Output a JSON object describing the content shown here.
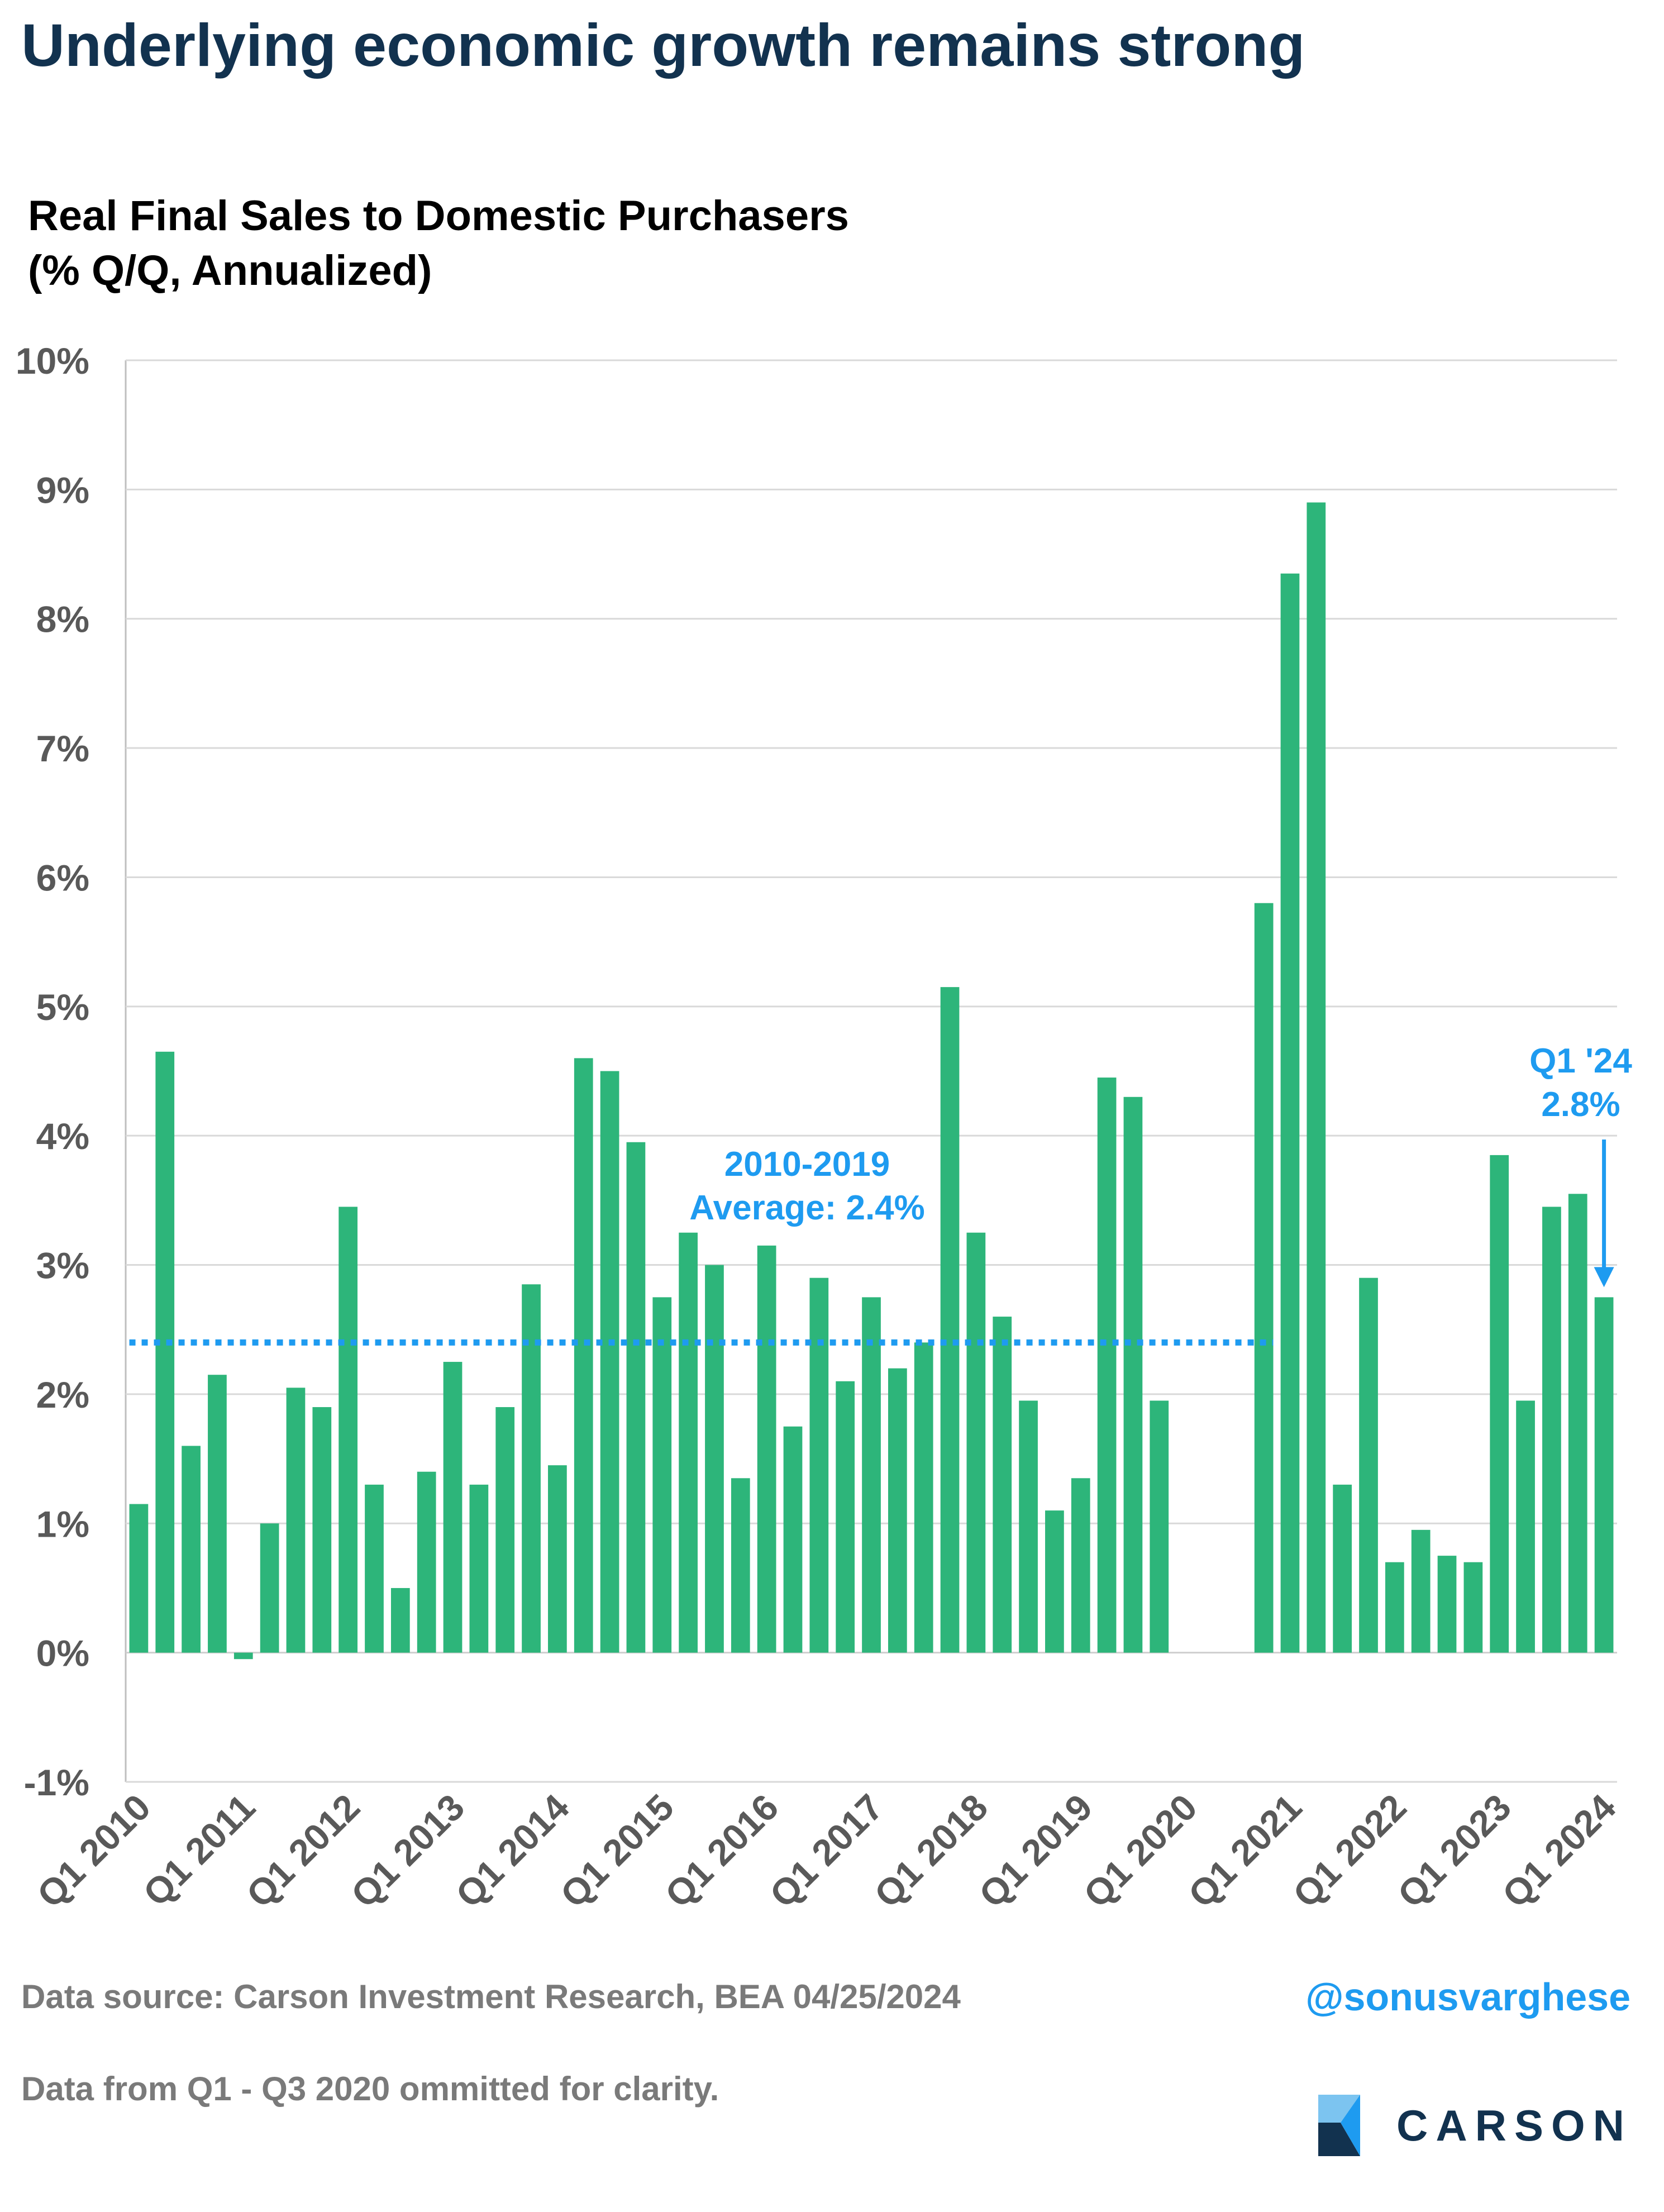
{
  "headline": "Underlying economic growth remains strong",
  "chart_data": {
    "type": "bar",
    "title": "Real Final Sales to Domestic Purchasers",
    "subtitle": "(% Q/Q, Annualized)",
    "xlabel": "",
    "ylabel": "",
    "ylim": [
      -1,
      10
    ],
    "y_ticks": [
      "-1%",
      "0%",
      "1%",
      "2%",
      "3%",
      "4%",
      "5%",
      "6%",
      "7%",
      "8%",
      "9%",
      "10%"
    ],
    "x_tick_labels": [
      "Q1 2010",
      "Q1 2011",
      "Q1 2012",
      "Q1 2013",
      "Q1 2014",
      "Q1 2015",
      "Q1 2016",
      "Q1 2017",
      "Q1 2018",
      "Q1 2019",
      "Q1 2020",
      "Q1 2021",
      "Q1 2022",
      "Q1 2023",
      "Q1 2024"
    ],
    "grid": true,
    "bar_color": "#2db57a",
    "categories": [
      "Q1 2010",
      "Q2 2010",
      "Q3 2010",
      "Q4 2010",
      "Q1 2011",
      "Q2 2011",
      "Q3 2011",
      "Q4 2011",
      "Q1 2012",
      "Q2 2012",
      "Q3 2012",
      "Q4 2012",
      "Q1 2013",
      "Q2 2013",
      "Q3 2013",
      "Q4 2013",
      "Q1 2014",
      "Q2 2014",
      "Q3 2014",
      "Q4 2014",
      "Q1 2015",
      "Q2 2015",
      "Q3 2015",
      "Q4 2015",
      "Q1 2016",
      "Q2 2016",
      "Q3 2016",
      "Q4 2016",
      "Q1 2017",
      "Q2 2017",
      "Q3 2017",
      "Q4 2017",
      "Q1 2018",
      "Q2 2018",
      "Q3 2018",
      "Q4 2018",
      "Q1 2019",
      "Q2 2019",
      "Q3 2019",
      "Q4 2019",
      "Q1 2020",
      "Q2 2020",
      "Q3 2020",
      "Q4 2020",
      "Q1 2021",
      "Q2 2021",
      "Q3 2021",
      "Q4 2021",
      "Q1 2022",
      "Q2 2022",
      "Q3 2022",
      "Q4 2022",
      "Q1 2023",
      "Q2 2023",
      "Q3 2023",
      "Q4 2023",
      "Q1 2024"
    ],
    "values": [
      1.15,
      4.65,
      1.6,
      2.15,
      -0.05,
      1.0,
      2.05,
      1.9,
      3.45,
      1.3,
      0.5,
      1.4,
      2.25,
      1.3,
      1.9,
      2.85,
      1.45,
      4.6,
      4.5,
      3.95,
      2.75,
      3.25,
      3.0,
      1.35,
      3.15,
      1.75,
      2.9,
      2.1,
      2.75,
      2.2,
      2.4,
      5.15,
      3.25,
      2.6,
      1.95,
      1.1,
      1.35,
      4.45,
      4.3,
      1.95,
      null,
      null,
      null,
      5.8,
      8.35,
      8.9,
      1.3,
      2.9,
      0.7,
      0.95,
      0.75,
      0.7,
      3.85,
      1.95,
      3.45,
      3.55,
      2.75
    ],
    "reference_line": {
      "value": 2.4,
      "x_start": "Q1 2010",
      "x_end": "Q4 2020",
      "color": "#1e9bf0",
      "style": "dotted"
    },
    "annotations": [
      {
        "lines": [
          "2010-2019",
          "Average: 2.4%"
        ],
        "color": "#1e9bf0"
      },
      {
        "lines": [
          "Q1 '24",
          "2.8%"
        ],
        "color": "#1e9bf0",
        "arrow_to": "Q1 2024"
      }
    ]
  },
  "footer": {
    "source": "Data source: Carson Investment Research, BEA   04/25/2024",
    "note": "Data from Q1 - Q3 2020 ommitted for clarity.",
    "handle": "@sonusvarghese"
  },
  "brand": {
    "name": "CARSON",
    "logo_icon": "carson-logo-icon"
  }
}
